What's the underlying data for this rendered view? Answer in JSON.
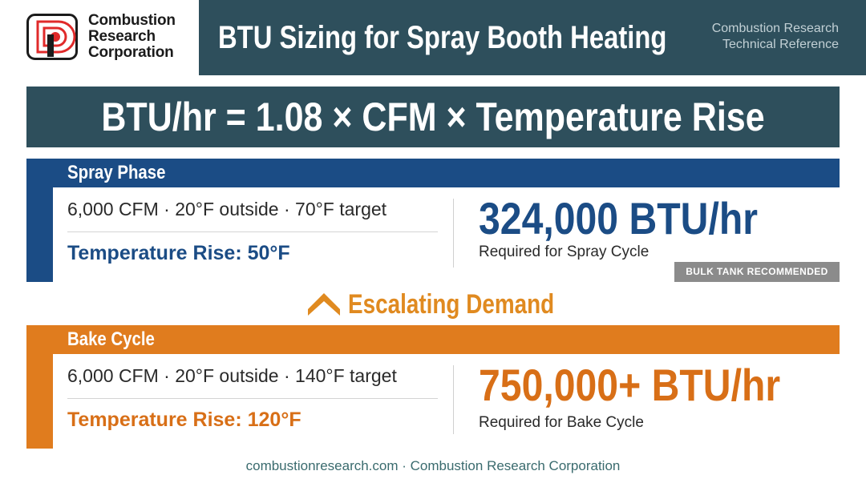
{
  "logo": {
    "icon": "combustion-research-logo-icon",
    "line1": "Combustion",
    "line2": "Research",
    "line3": "Corporation",
    "colors": {
      "red": "#e02a2a",
      "dark": "#1b1b1b"
    }
  },
  "header": {
    "title": "BTU Sizing for Spray Booth Heating",
    "reference_line1": "Combustion Research",
    "reference_line2": "Technical Reference",
    "background": "#2e4f5c"
  },
  "formula": {
    "text": "BTU/hr = 1.08 × CFM × Temperature Rise"
  },
  "spray_phase": {
    "title": "Spray Phase",
    "spec": "6,000 CFM · 20°F outside · 70°F target",
    "rise": "Temperature Rise: 50°F",
    "value": "324,000 BTU/hr",
    "caption": "Required for Spray Cycle",
    "badge": "BULK TANK RECOMMENDED",
    "color": "#1b4c85"
  },
  "escalation": {
    "icon": "chevron-up-icon",
    "label": "Escalating Demand",
    "color": "#e08a20"
  },
  "bake_cycle": {
    "title": "Bake Cycle",
    "spec": "6,000 CFM · 20°F outside · 140°F target",
    "rise": "Temperature Rise: 120°F",
    "value": "750,000+ BTU/hr",
    "caption": "Required for Bake Cycle",
    "color": "#e07c1e"
  },
  "footer": {
    "text": "combustionresearch.com · Combustion Research Corporation"
  }
}
